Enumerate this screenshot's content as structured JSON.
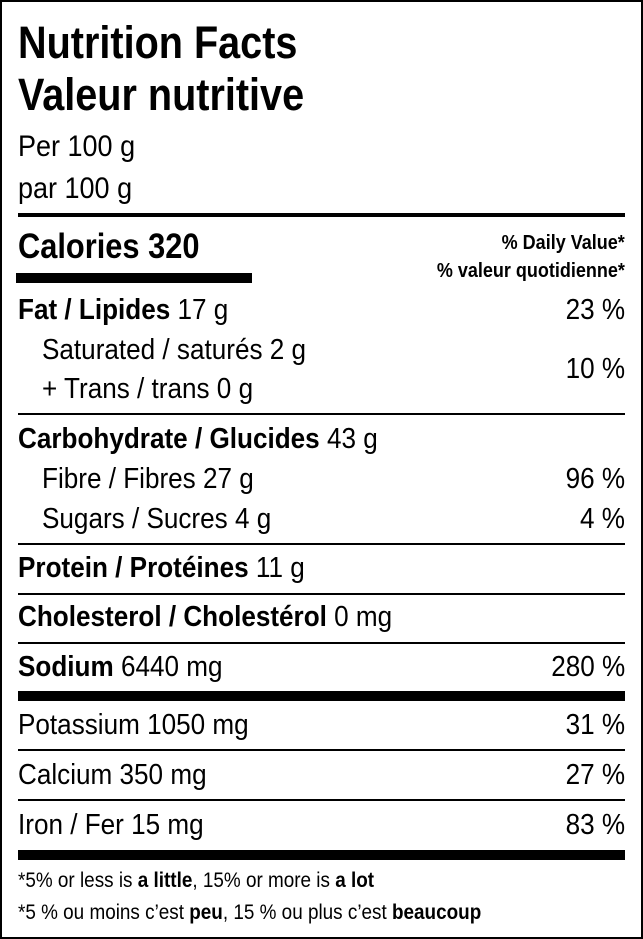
{
  "title_en": "Nutrition Facts",
  "title_fr": "Valeur nutritive",
  "serving_en": "Per 100 g",
  "serving_fr": "par 100 g",
  "calories": {
    "label": "Calories",
    "value": "320"
  },
  "dv_header_en": "% Daily Value*",
  "dv_header_fr": "% valeur quotidienne*",
  "rows": {
    "fat": {
      "label": "Fat / Lipides",
      "amount": "17 g",
      "dv": "23 %"
    },
    "saturated": {
      "label": "Saturated / saturés",
      "amount": "2 g"
    },
    "trans": {
      "label": "+ Trans / trans",
      "amount": "0 g"
    },
    "sat_trans_dv": "10 %",
    "carb": {
      "label": "Carbohydrate / Glucides",
      "amount": "43 g"
    },
    "fibre": {
      "label": "Fibre / Fibres",
      "amount": "27 g",
      "dv": "96 %"
    },
    "sugars": {
      "label": "Sugars / Sucres",
      "amount": "4 g",
      "dv": "4 %"
    },
    "protein": {
      "label": "Protein / Protéines",
      "amount": "11 g"
    },
    "cholesterol": {
      "label": "Cholesterol / Cholestérol",
      "amount": "0 mg"
    },
    "sodium": {
      "label": "Sodium",
      "amount": "6440 mg",
      "dv": "280 %"
    },
    "potassium": {
      "label": "Potassium",
      "amount": "1050 mg",
      "dv": "31 %"
    },
    "calcium": {
      "label": "Calcium",
      "amount": "350 mg",
      "dv": "27 %"
    },
    "iron": {
      "label": "Iron / Fer",
      "amount": "15 mg",
      "dv": "83 %"
    }
  },
  "footnote_en": {
    "a": "*5% or less is ",
    "b": "a little",
    ",c": "",
    "c": ", 15% or more is ",
    "d": "a lot"
  },
  "footnote_fr": {
    "a": "*5 % ou moins c’est ",
    "b": "peu",
    "c": ", 15 % ou plus c’est ",
    "d": "beaucoup"
  }
}
